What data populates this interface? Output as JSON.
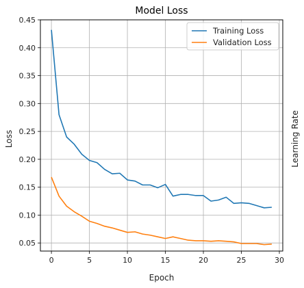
{
  "chart_data": {
    "type": "line",
    "title": "Model Loss",
    "xlabel": "Epoch",
    "ylabel": "Loss",
    "y2label": "Learning Rate",
    "xlim": [
      -1.45,
      30.45
    ],
    "ylim": [
      0.0355,
      0.45
    ],
    "xticks": [
      0,
      5,
      10,
      15,
      20,
      25,
      30
    ],
    "yticks": [
      0.05,
      0.1,
      0.15,
      0.2,
      0.25,
      0.3,
      0.35,
      0.4,
      0.45
    ],
    "ytick_labels": [
      "0.05",
      "0.10",
      "0.15",
      "0.20",
      "0.25",
      "0.30",
      "0.35",
      "0.40",
      "0.45"
    ],
    "grid": true,
    "legend_position": "top-right",
    "x": [
      0,
      1,
      2,
      3,
      4,
      5,
      6,
      7,
      8,
      9,
      10,
      11,
      12,
      13,
      14,
      15,
      16,
      17,
      18,
      19,
      20,
      21,
      22,
      23,
      24,
      25,
      26,
      27,
      28,
      29
    ],
    "series": [
      {
        "name": "Training Loss",
        "color": "#1f77b4",
        "values": [
          0.432,
          0.28,
          0.24,
          0.227,
          0.209,
          0.198,
          0.194,
          0.182,
          0.174,
          0.175,
          0.163,
          0.161,
          0.154,
          0.154,
          0.149,
          0.155,
          0.134,
          0.137,
          0.137,
          0.135,
          0.135,
          0.125,
          0.127,
          0.132,
          0.121,
          0.122,
          0.121,
          0.117,
          0.113,
          0.114
        ]
      },
      {
        "name": "Validation Loss",
        "color": "#ff7f0e",
        "values": [
          0.168,
          0.134,
          0.116,
          0.106,
          0.098,
          0.089,
          0.085,
          0.08,
          0.077,
          0.073,
          0.069,
          0.07,
          0.066,
          0.064,
          0.061,
          0.058,
          0.061,
          0.058,
          0.055,
          0.054,
          0.054,
          0.053,
          0.054,
          0.053,
          0.052,
          0.049,
          0.049,
          0.049,
          0.047,
          0.048
        ]
      }
    ]
  }
}
